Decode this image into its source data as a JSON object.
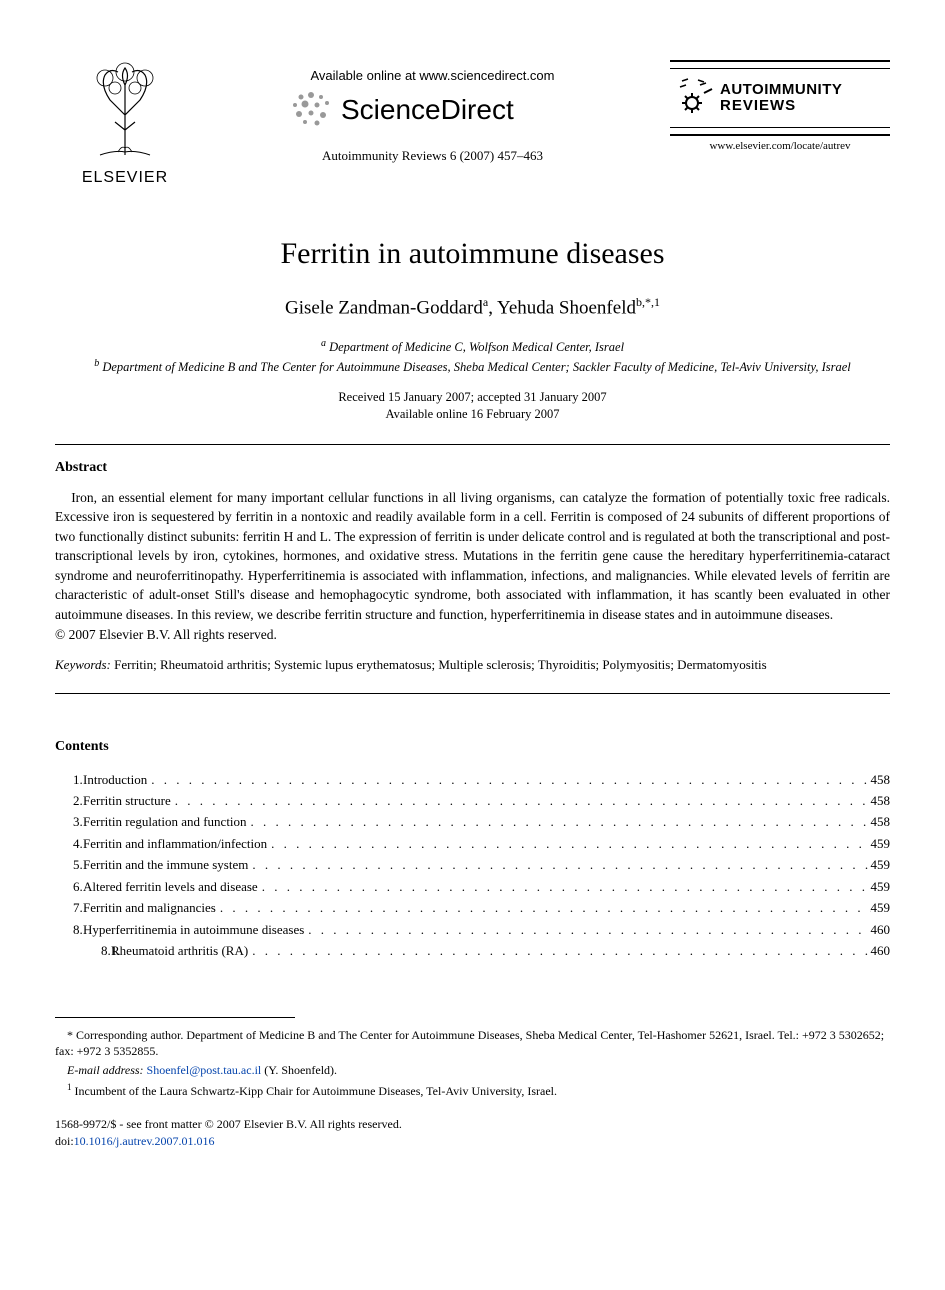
{
  "header": {
    "publisher_name": "ELSEVIER",
    "available_online": "Available online at www.sciencedirect.com",
    "sciencedirect": "ScienceDirect",
    "citation": "Autoimmunity Reviews 6 (2007) 457–463",
    "journal_name_line1": "AUTOIMMUNITY",
    "journal_name_line2": "REVIEWS",
    "journal_url": "www.elsevier.com/locate/autrev"
  },
  "article": {
    "title": "Ferritin in autoimmune diseases",
    "author1_name": "Gisele Zandman-Goddard",
    "author1_sup": "a",
    "author2_name": "Yehuda Shoenfeld",
    "author2_sup": "b,*,1",
    "affiliation_a_sup": "a",
    "affiliation_a": " Department of Medicine C, Wolfson Medical Center, Israel",
    "affiliation_b_sup": "b",
    "affiliation_b": " Department of Medicine B and The Center for Autoimmune Diseases, Sheba Medical Center; Sackler Faculty of Medicine, Tel-Aviv University, Israel",
    "received": "Received 15 January 2007; accepted 31 January 2007",
    "available": "Available online 16 February 2007"
  },
  "abstract": {
    "heading": "Abstract",
    "text": "Iron, an essential element for many important cellular functions in all living organisms, can catalyze the formation of potentially toxic free radicals. Excessive iron is sequestered by ferritin in a nontoxic and readily available form in a cell. Ferritin is composed of 24 subunits of different proportions of two functionally distinct subunits: ferritin H and L. The expression of ferritin is under delicate control and is regulated at both the transcriptional and post-transcriptional levels by iron, cytokines, hormones, and oxidative stress. Mutations in the ferritin gene cause the hereditary hyperferritinemia-cataract syndrome and neuroferritinopathy. Hyperferritinemia is associated with inflammation, infections, and malignancies. While elevated levels of ferritin are characteristic of adult-onset Still's disease and hemophagocytic syndrome, both associated with inflammation, it has scantly been evaluated in other autoimmune diseases. In this review, we describe ferritin structure and function, hyperferritinemia in disease states and in autoimmune diseases.",
    "copyright": "© 2007 Elsevier B.V. All rights reserved."
  },
  "keywords": {
    "label": "Keywords:",
    "text": " Ferritin; Rheumatoid arthritis; Systemic lupus erythematosus; Multiple sclerosis; Thyroiditis; Polymyositis; Dermatomyositis"
  },
  "contents": {
    "heading": "Contents",
    "items": [
      {
        "num": "1.",
        "title": "Introduction",
        "page": "458",
        "sub": false
      },
      {
        "num": "2.",
        "title": "Ferritin structure",
        "page": "458",
        "sub": false
      },
      {
        "num": "3.",
        "title": "Ferritin regulation and function",
        "page": "458",
        "sub": false
      },
      {
        "num": "4.",
        "title": "Ferritin and inflammation/infection",
        "page": "459",
        "sub": false
      },
      {
        "num": "5.",
        "title": "Ferritin and the immune system",
        "page": "459",
        "sub": false
      },
      {
        "num": "6.",
        "title": "Altered ferritin levels and disease",
        "page": "459",
        "sub": false
      },
      {
        "num": "7.",
        "title": "Ferritin and malignancies",
        "page": "459",
        "sub": false
      },
      {
        "num": "8.",
        "title": "Hyperferritinemia in autoimmune diseases",
        "page": "460",
        "sub": false
      },
      {
        "num": "8.1.",
        "title": "Rheumatoid arthritis (RA)",
        "page": "460",
        "sub": true
      }
    ]
  },
  "footnotes": {
    "corresponding": "* Corresponding author. Department of Medicine B and The Center for Autoimmune Diseases, Sheba Medical Center, Tel-Hashomer 52621, Israel. Tel.: +972 3 5302652; fax: +972 3 5352855.",
    "email_label": "E-mail address: ",
    "email": "Shoenfel@post.tau.ac.il",
    "email_suffix": " (Y. Shoenfeld).",
    "note1_sup": "1",
    "note1": " Incumbent of the Laura Schwartz-Kipp Chair for Autoimmune Diseases, Tel-Aviv University, Israel."
  },
  "issn": {
    "line1": "1568-9972/$ - see front matter © 2007 Elsevier B.V. All rights reserved.",
    "doi_label": "doi:",
    "doi": "10.1016/j.autrev.2007.01.016"
  }
}
